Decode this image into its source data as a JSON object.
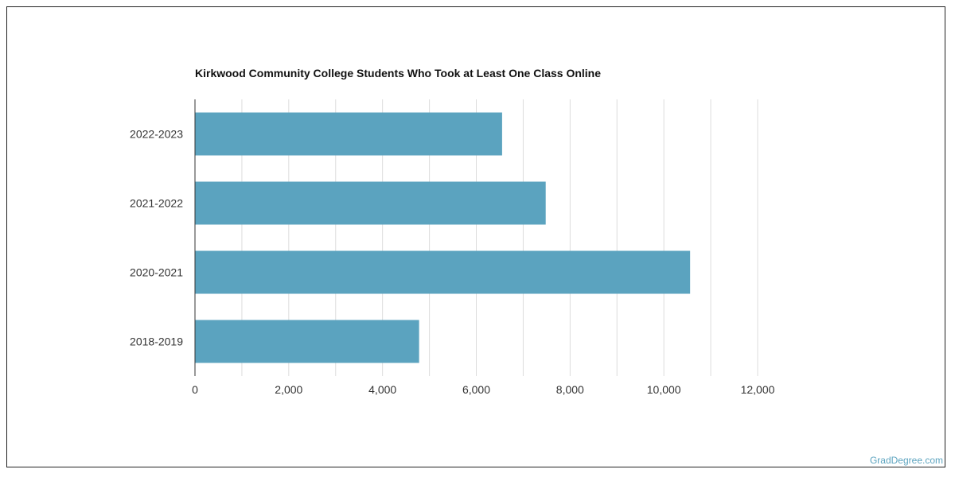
{
  "chart_data": {
    "type": "bar",
    "orientation": "horizontal",
    "title": "Kirkwood Community College Students Who Took at Least One Class Online",
    "categories": [
      "2022-2023",
      "2021-2022",
      "2020-2021",
      "2018-2019"
    ],
    "values": [
      6550,
      7480,
      10560,
      4780
    ],
    "xlabel": "",
    "ylabel": "",
    "xlim": [
      0,
      12000
    ],
    "xticks": [
      0,
      2000,
      4000,
      6000,
      8000,
      10000,
      12000
    ],
    "xtick_labels": [
      "0",
      "2,000",
      "4,000",
      "6,000",
      "8,000",
      "10,000",
      "12,000"
    ],
    "grid": true,
    "bar_color": "#5ba3bf",
    "grid_color": "#dddddd"
  },
  "watermark": "GradDegree.com"
}
